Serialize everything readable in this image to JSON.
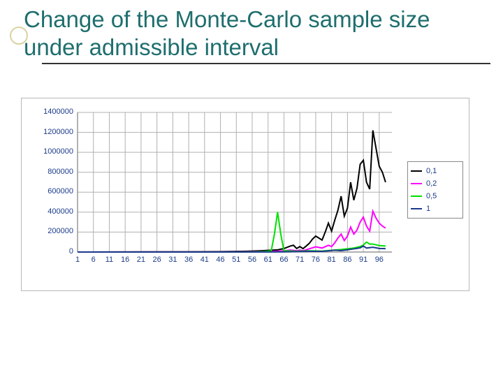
{
  "title": "Change of the Monte-Carlo sample size under admissible interval",
  "chart": {
    "type": "line",
    "background_color": "#ffffff",
    "grid_color": "#b0b0b0",
    "axis_color": "#808080",
    "label_color": "#1a3a8a",
    "label_fontsize": 11,
    "xlim": [
      1,
      100
    ],
    "ylim": [
      0,
      1400000
    ],
    "ytick_step": 200000,
    "yticks": [
      "0",
      "200000",
      "400000",
      "600000",
      "800000",
      "1000000",
      "1200000",
      "1400000"
    ],
    "xticks": [
      "1",
      "6",
      "11",
      "16",
      "21",
      "26",
      "31",
      "36",
      "41",
      "46",
      "51",
      "56",
      "61",
      "66",
      "71",
      "76",
      "81",
      "86",
      "91",
      "96"
    ],
    "series": [
      {
        "name": "0,1",
        "color": "#000000",
        "x": [
          1,
          46,
          50,
          54,
          58,
          60,
          62,
          64,
          66,
          68,
          69,
          70,
          71,
          72,
          73,
          74,
          75,
          76,
          77,
          78,
          79,
          80,
          81,
          82,
          83,
          84,
          85,
          86,
          87,
          88,
          89,
          90,
          91,
          92,
          93,
          94,
          95,
          96,
          97,
          98
        ],
        "y": [
          100,
          4000,
          6000,
          8000,
          12000,
          15000,
          18000,
          22000,
          35000,
          60000,
          68000,
          35000,
          55000,
          34000,
          60000,
          88000,
          130000,
          160000,
          140000,
          120000,
          200000,
          290000,
          210000,
          320000,
          420000,
          560000,
          360000,
          440000,
          700000,
          520000,
          640000,
          880000,
          920000,
          700000,
          630000,
          1220000,
          1040000,
          860000,
          800000,
          700000
        ]
      },
      {
        "name": "0,2",
        "color": "#ff00ff",
        "x": [
          1,
          46,
          52,
          56,
          60,
          64,
          66,
          68,
          70,
          71,
          72,
          73,
          74,
          76,
          78,
          80,
          81,
          82,
          83,
          84,
          85,
          86,
          87,
          88,
          89,
          90,
          91,
          92,
          93,
          94,
          95,
          96,
          97,
          98
        ],
        "y": [
          100,
          2000,
          3000,
          4000,
          5000,
          8000,
          13000,
          20000,
          13000,
          18000,
          14000,
          22000,
          33000,
          52000,
          40000,
          68000,
          55000,
          92000,
          140000,
          180000,
          115000,
          160000,
          250000,
          180000,
          220000,
          300000,
          350000,
          260000,
          210000,
          410000,
          340000,
          290000,
          260000,
          240000
        ]
      },
      {
        "name": "0,5",
        "color": "#00e000",
        "x": [
          1,
          50,
          56,
          60,
          62,
          63,
          64,
          65,
          66,
          70,
          74,
          78,
          82,
          84,
          86,
          88,
          90,
          91,
          92,
          93,
          94,
          96,
          98
        ],
        "y": [
          100,
          1000,
          2000,
          5000,
          12000,
          180000,
          400000,
          180000,
          12000,
          8000,
          12000,
          10000,
          20000,
          25000,
          32000,
          40000,
          55000,
          70000,
          100000,
          80000,
          80000,
          65000,
          60000
        ]
      },
      {
        "name": "1",
        "color": "#1a3a8a",
        "x": [
          1,
          60,
          66,
          70,
          74,
          78,
          80,
          82,
          84,
          86,
          88,
          90,
          91,
          92,
          94,
          96,
          98
        ],
        "y": [
          100,
          500,
          2000,
          4000,
          8000,
          7000,
          12000,
          18000,
          14000,
          22000,
          32000,
          42000,
          60000,
          40000,
          48000,
          36000,
          34000
        ]
      }
    ],
    "legend": {
      "items": [
        {
          "label": "0,1",
          "color": "#000000"
        },
        {
          "label": "0,2",
          "color": "#ff00ff"
        },
        {
          "label": "0,5",
          "color": "#00e000"
        },
        {
          "label": "1",
          "color": "#1a3a8a"
        }
      ]
    }
  }
}
